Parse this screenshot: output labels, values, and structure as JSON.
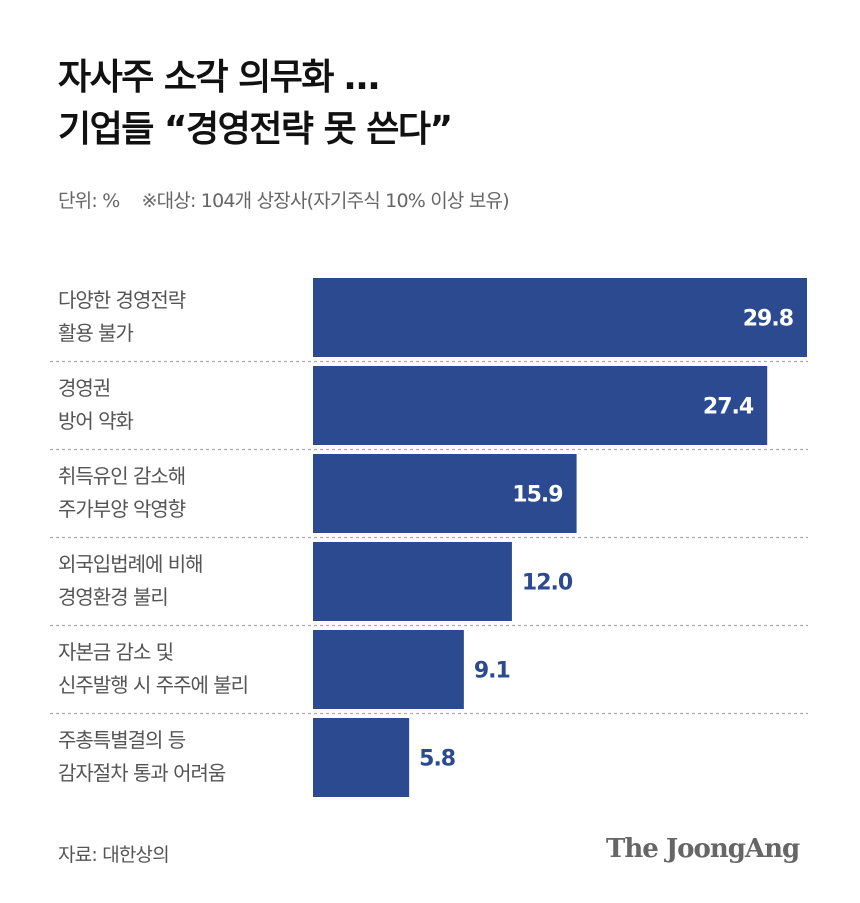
{
  "title": [
    "자사주 소각 의무화 …",
    "기업들 “경영전략 못 쓴다”"
  ],
  "subtitle": {
    "unit": "단위: %",
    "note": "※대상: 104개 상장사(자기주식 10% 이상 보유)"
  },
  "source": "자료: 대한상의",
  "logo": "The JoongAng",
  "colors": {
    "bar": "#2b4a8f",
    "value_inside": "#ffffff",
    "value_outside": "#2b4a8f"
  },
  "chart_data": {
    "type": "bar",
    "orientation": "horizontal",
    "categories": [
      [
        "다양한 경영전략",
        "활용 불가"
      ],
      [
        "경영권",
        "방어 약화"
      ],
      [
        "취득유인 감소해",
        "주가부양 악영향"
      ],
      [
        "외국입법례에 비해",
        "경영환경 불리"
      ],
      [
        "자본금 감소 및",
        "신주발행 시 주주에 불리"
      ],
      [
        "주총특별결의 등",
        "감자절차 통과 어려움"
      ]
    ],
    "values": [
      29.8,
      27.4,
      15.9,
      12.0,
      9.1,
      5.8
    ],
    "value_labels": [
      "29.8",
      "27.4",
      "15.9",
      "12.0",
      "9.1",
      "5.8"
    ],
    "xlim": [
      0,
      29.8
    ],
    "grid": false
  }
}
